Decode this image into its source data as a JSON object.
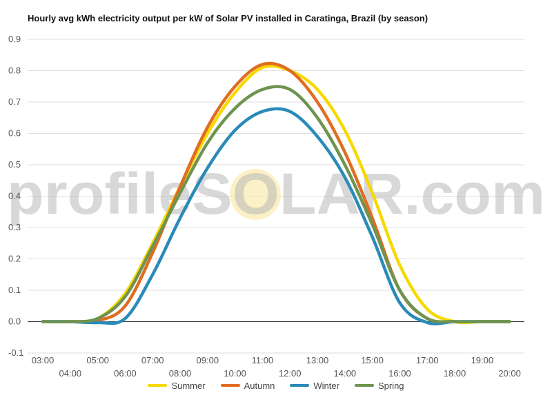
{
  "title": "Hourly avg kWh electricity output per kW of Solar PV installed in Caratinga, Brazil (by season)",
  "watermark": "profileSOLAR.com",
  "chart_data": {
    "type": "line",
    "x": [
      "03:00",
      "04:00",
      "05:00",
      "06:00",
      "07:00",
      "08:00",
      "09:00",
      "10:00",
      "11:00",
      "12:00",
      "13:00",
      "14:00",
      "15:00",
      "16:00",
      "17:00",
      "18:00",
      "19:00",
      "20:00"
    ],
    "ylim": [
      -0.1,
      0.9
    ],
    "yticks": [
      -0.1,
      0.0,
      0.1,
      0.2,
      0.3,
      0.4,
      0.5,
      0.6,
      0.7,
      0.8,
      0.9
    ],
    "grid": true,
    "legend_position": "bottom",
    "series": [
      {
        "name": "Summer",
        "color": "#f7d900",
        "values": [
          0.0,
          0.0,
          0.01,
          0.09,
          0.25,
          0.43,
          0.6,
          0.73,
          0.81,
          0.8,
          0.74,
          0.61,
          0.41,
          0.18,
          0.04,
          0.0,
          0.0,
          0.0
        ]
      },
      {
        "name": "Autumn",
        "color": "#e06d20",
        "values": [
          0.0,
          0.0,
          0.003,
          0.05,
          0.22,
          0.43,
          0.62,
          0.75,
          0.82,
          0.8,
          0.7,
          0.54,
          0.33,
          0.1,
          0.01,
          0.0,
          0.0,
          0.0
        ]
      },
      {
        "name": "Winter",
        "color": "#2a8ab8",
        "values": [
          0.0,
          0.0,
          -0.003,
          0.01,
          0.15,
          0.33,
          0.49,
          0.61,
          0.67,
          0.67,
          0.59,
          0.46,
          0.27,
          0.06,
          -0.003,
          0.0,
          0.0,
          0.0
        ]
      },
      {
        "name": "Spring",
        "color": "#6e9450",
        "values": [
          0.0,
          0.0,
          0.01,
          0.08,
          0.24,
          0.41,
          0.57,
          0.68,
          0.74,
          0.74,
          0.65,
          0.5,
          0.31,
          0.1,
          0.01,
          0.0,
          0.0,
          0.0
        ]
      }
    ]
  }
}
